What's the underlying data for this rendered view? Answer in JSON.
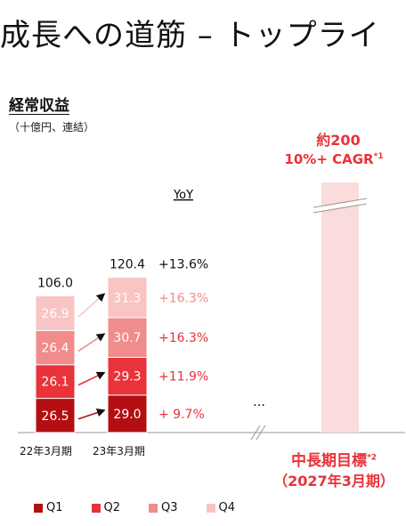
{
  "title": "成長への道筋 – トップライ",
  "heading": "経常収益",
  "unit": "（十億円、連結）",
  "target": {
    "value": "約200",
    "cagr": "10%+ CAGR",
    "cagr_note": "*1",
    "label": "中長期目標",
    "label_note": "*2",
    "year": "（2027年3月期）"
  },
  "ellipsis": "…",
  "colors": {
    "Q1": "#b30f13",
    "Q2": "#e8333a",
    "Q3": "#f08c8c",
    "Q4": "#f9c4c4",
    "target": "#fadcdc",
    "accent": "#e8333a"
  },
  "chart_data": {
    "type": "bar",
    "stacked": true,
    "categories": [
      "22年3月期",
      "23年3月期"
    ],
    "series": [
      {
        "name": "Q1",
        "values": [
          26.5,
          29.0
        ]
      },
      {
        "name": "Q2",
        "values": [
          26.1,
          29.3
        ]
      },
      {
        "name": "Q3",
        "values": [
          26.4,
          30.7
        ]
      },
      {
        "name": "Q4",
        "values": [
          26.9,
          31.3
        ]
      }
    ],
    "totals": [
      "106.0",
      "120.4"
    ],
    "yoy_header": "YoY",
    "yoy": [
      "+ 9.7%",
      "+11.9%",
      "+16.3%",
      "+16.3%"
    ],
    "yoy_total": "+13.6%",
    "target_value": 200,
    "legend_position": "bottom"
  }
}
